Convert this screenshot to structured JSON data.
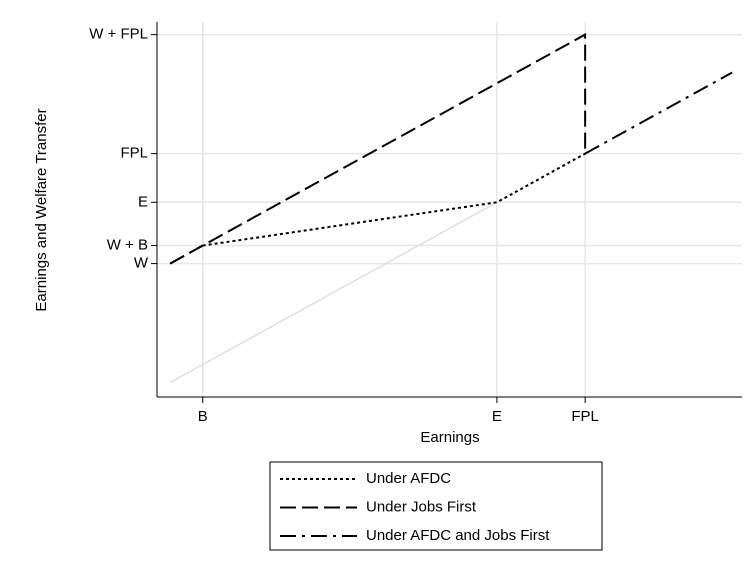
{
  "chart_data": {
    "type": "line",
    "xlabel": "Earnings",
    "ylabel": "Earnings and Welfare Transfer",
    "xlim": [
      -0.4,
      17.5
    ],
    "ylim": [
      -0.8,
      20
    ],
    "xticks": [
      {
        "value": 1,
        "label": "B"
      },
      {
        "value": 10,
        "label": "E"
      },
      {
        "value": 12.7,
        "label": "FPL"
      }
    ],
    "yticks": [
      {
        "value": 6.6,
        "label": "W"
      },
      {
        "value": 7.6,
        "label": "W + B"
      },
      {
        "value": 10,
        "label": "E"
      },
      {
        "value": 12.7,
        "label": "FPL"
      },
      {
        "value": 19.3,
        "label": "W + FPL"
      }
    ],
    "grid": true,
    "reference_line": {
      "x": [
        0,
        10
      ],
      "y": [
        0,
        10
      ],
      "color": "#e0e0e0"
    },
    "series": [
      {
        "name": "Under AFDC",
        "color": "#000000",
        "style": "dotted",
        "x": [
          1,
          10,
          12.7
        ],
        "y": [
          7.6,
          10,
          12.7
        ]
      },
      {
        "name": "Under Jobs First",
        "color": "#000000",
        "style": "dashed",
        "x": [
          0,
          12.7,
          12.7
        ],
        "y": [
          6.6,
          19.3,
          12.7
        ]
      },
      {
        "name": "Under AFDC and Jobs First",
        "color": "#000000",
        "style": "dashdot",
        "x": [
          0,
          1,
          1,
          12.7,
          17.2
        ],
        "y": [
          6.6,
          7.6,
          null,
          12.7,
          17.2
        ]
      }
    ]
  }
}
